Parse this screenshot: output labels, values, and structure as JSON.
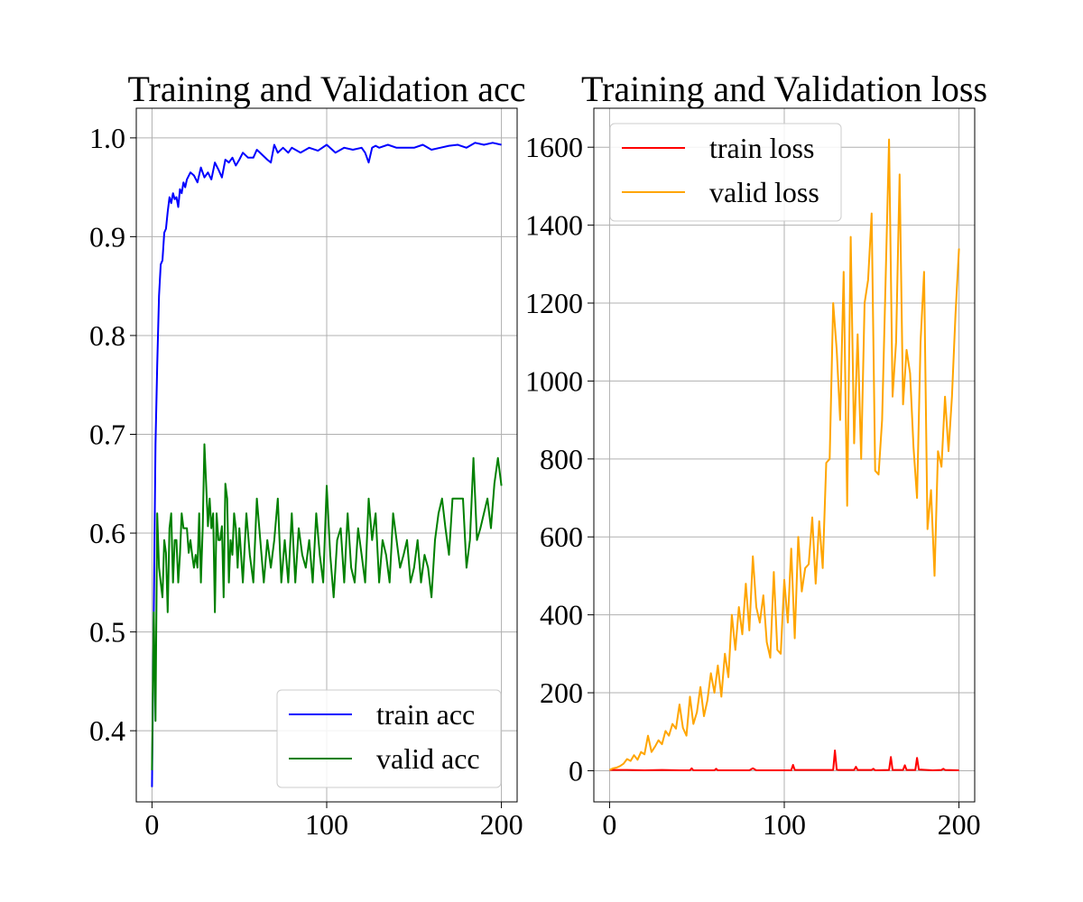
{
  "chart_data": [
    {
      "type": "line",
      "title": "Training and Validation acc",
      "xlabel": "",
      "ylabel": "",
      "xlim": [
        -9,
        209
      ],
      "ylim": [
        0.328,
        1.03
      ],
      "x_ticks": [
        0,
        100,
        200
      ],
      "x_tick_labels": [
        "0",
        "100",
        "200"
      ],
      "y_ticks": [
        0.4,
        0.5,
        0.6,
        0.7,
        0.8,
        0.9,
        1.0
      ],
      "y_tick_labels": [
        "0.4",
        "0.5",
        "0.6",
        "0.7",
        "0.8",
        "0.9",
        "1.0"
      ],
      "grid": true,
      "legend_position": "lower-right",
      "series": [
        {
          "name": "train acc",
          "color": "#0000ff",
          "x": [
            0,
            1,
            2,
            3,
            4,
            5,
            6,
            7,
            8,
            9,
            10,
            11,
            12,
            13,
            14,
            15,
            16,
            17,
            18,
            19,
            20,
            22,
            24,
            26,
            28,
            30,
            32,
            34,
            36,
            38,
            40,
            42,
            44,
            46,
            48,
            50,
            52,
            55,
            58,
            60,
            63,
            66,
            68,
            70,
            72,
            75,
            78,
            80,
            85,
            90,
            95,
            100,
            105,
            110,
            115,
            120,
            122,
            124,
            126,
            128,
            130,
            135,
            140,
            145,
            150,
            155,
            160,
            165,
            170,
            175,
            180,
            185,
            190,
            195,
            200
          ],
          "y": [
            0.343,
            0.52,
            0.69,
            0.77,
            0.84,
            0.872,
            0.876,
            0.904,
            0.908,
            0.925,
            0.94,
            0.934,
            0.944,
            0.938,
            0.94,
            0.93,
            0.948,
            0.944,
            0.955,
            0.95,
            0.958,
            0.965,
            0.962,
            0.955,
            0.97,
            0.96,
            0.965,
            0.958,
            0.975,
            0.968,
            0.96,
            0.978,
            0.975,
            0.98,
            0.972,
            0.978,
            0.985,
            0.98,
            0.98,
            0.988,
            0.983,
            0.978,
            0.975,
            0.993,
            0.985,
            0.99,
            0.985,
            0.99,
            0.985,
            0.99,
            0.987,
            0.993,
            0.985,
            0.99,
            0.988,
            0.99,
            0.985,
            0.975,
            0.99,
            0.992,
            0.99,
            0.993,
            0.99,
            0.99,
            0.99,
            0.993,
            0.988,
            0.99,
            0.992,
            0.993,
            0.99,
            0.995,
            0.993,
            0.995,
            0.993
          ]
        },
        {
          "name": "valid acc",
          "color": "#008000",
          "x": [
            0,
            1,
            2,
            3,
            4,
            5,
            6,
            7,
            8,
            9,
            10,
            11,
            12,
            13,
            14,
            15,
            16,
            17,
            18,
            19,
            20,
            21,
            22,
            23,
            24,
            25,
            26,
            27,
            28,
            29,
            30,
            31,
            32,
            33,
            34,
            35,
            36,
            37,
            38,
            39,
            40,
            41,
            42,
            43,
            44,
            45,
            46,
            47,
            48,
            49,
            50,
            52,
            54,
            56,
            58,
            60,
            62,
            64,
            66,
            68,
            70,
            72,
            74,
            76,
            78,
            80,
            82,
            84,
            86,
            88,
            90,
            92,
            94,
            96,
            98,
            100,
            102,
            104,
            106,
            108,
            110,
            112,
            114,
            116,
            118,
            120,
            122,
            124,
            126,
            128,
            130,
            132,
            134,
            136,
            138,
            140,
            142,
            144,
            146,
            148,
            150,
            152,
            154,
            156,
            158,
            160,
            162,
            164,
            166,
            168,
            170,
            172,
            174,
            176,
            178,
            180,
            182,
            184,
            186,
            188,
            190,
            192,
            194,
            196,
            198,
            200
          ],
          "y": [
            0.36,
            0.52,
            0.41,
            0.62,
            0.565,
            0.55,
            0.535,
            0.593,
            0.58,
            0.52,
            0.605,
            0.62,
            0.55,
            0.593,
            0.593,
            0.55,
            0.578,
            0.62,
            0.605,
            0.605,
            0.605,
            0.58,
            0.593,
            0.578,
            0.565,
            0.578,
            0.565,
            0.62,
            0.55,
            0.605,
            0.69,
            0.65,
            0.607,
            0.635,
            0.605,
            0.62,
            0.52,
            0.62,
            0.593,
            0.593,
            0.607,
            0.535,
            0.65,
            0.635,
            0.55,
            0.593,
            0.578,
            0.62,
            0.605,
            0.565,
            0.605,
            0.55,
            0.62,
            0.578,
            0.55,
            0.635,
            0.593,
            0.55,
            0.593,
            0.565,
            0.593,
            0.635,
            0.55,
            0.593,
            0.55,
            0.62,
            0.55,
            0.605,
            0.578,
            0.565,
            0.593,
            0.55,
            0.62,
            0.578,
            0.55,
            0.648,
            0.578,
            0.535,
            0.593,
            0.605,
            0.55,
            0.62,
            0.565,
            0.55,
            0.605,
            0.578,
            0.55,
            0.635,
            0.593,
            0.62,
            0.55,
            0.593,
            0.578,
            0.55,
            0.62,
            0.593,
            0.565,
            0.578,
            0.593,
            0.55,
            0.565,
            0.593,
            0.55,
            0.578,
            0.565,
            0.535,
            0.593,
            0.62,
            0.635,
            0.605,
            0.578,
            0.635,
            0.635,
            0.635,
            0.635,
            0.565,
            0.593,
            0.676,
            0.593,
            0.605,
            0.62,
            0.635,
            0.605,
            0.65,
            0.676,
            0.648
          ]
        }
      ]
    },
    {
      "type": "line",
      "title": "Training and Validation loss",
      "xlabel": "",
      "ylabel": "",
      "xlim": [
        -9,
        209
      ],
      "ylim": [
        -80,
        1700
      ],
      "x_ticks": [
        0,
        100,
        200
      ],
      "x_tick_labels": [
        "0",
        "100",
        "200"
      ],
      "y_ticks": [
        0,
        200,
        400,
        600,
        800,
        1000,
        1200,
        1400,
        1600
      ],
      "y_tick_labels": [
        "0",
        "200",
        "400",
        "600",
        "800",
        "1000",
        "1200",
        "1400",
        "1600"
      ],
      "grid": true,
      "legend_position": "upper-left",
      "series": [
        {
          "name": "train loss",
          "color": "#ff0000",
          "x": [
            0,
            10,
            20,
            30,
            40,
            46,
            47,
            48,
            60,
            61,
            62,
            80,
            82,
            84,
            100,
            104,
            105,
            106,
            120,
            126,
            128,
            129,
            130,
            131,
            140,
            141,
            142,
            150,
            151,
            152,
            160,
            161,
            162,
            168,
            169,
            170,
            175,
            176,
            177,
            185,
            190,
            191,
            192,
            200
          ],
          "y": [
            2,
            2,
            1,
            2,
            1,
            1,
            6,
            1,
            1,
            5,
            1,
            1,
            6,
            1,
            1,
            1,
            15,
            2,
            2,
            2,
            2,
            52,
            3,
            2,
            2,
            10,
            2,
            2,
            5,
            1,
            2,
            35,
            2,
            2,
            14,
            2,
            2,
            33,
            3,
            1,
            2,
            5,
            2,
            1
          ]
        },
        {
          "name": "valid loss",
          "color": "#ffa500",
          "x": [
            0,
            2,
            4,
            6,
            8,
            10,
            12,
            14,
            16,
            18,
            20,
            22,
            24,
            26,
            28,
            30,
            32,
            34,
            36,
            38,
            40,
            42,
            44,
            46,
            48,
            50,
            52,
            54,
            56,
            58,
            60,
            62,
            64,
            66,
            68,
            70,
            72,
            74,
            76,
            78,
            80,
            82,
            84,
            86,
            88,
            90,
            92,
            94,
            96,
            98,
            100,
            102,
            104,
            106,
            108,
            110,
            112,
            114,
            116,
            118,
            120,
            122,
            124,
            126,
            128,
            130,
            132,
            134,
            136,
            138,
            140,
            142,
            144,
            146,
            148,
            150,
            152,
            154,
            156,
            158,
            160,
            162,
            164,
            166,
            168,
            170,
            172,
            174,
            176,
            178,
            180,
            182,
            184,
            186,
            188,
            190,
            192,
            194,
            196,
            198,
            200
          ],
          "y": [
            2,
            6,
            8,
            12,
            18,
            30,
            25,
            40,
            28,
            48,
            42,
            90,
            48,
            62,
            78,
            68,
            102,
            90,
            120,
            108,
            170,
            110,
            90,
            190,
            120,
            150,
            215,
            140,
            180,
            250,
            200,
            270,
            190,
            300,
            240,
            400,
            310,
            420,
            350,
            480,
            360,
            550,
            420,
            380,
            450,
            330,
            290,
            510,
            310,
            300,
            490,
            380,
            570,
            340,
            600,
            460,
            520,
            530,
            650,
            480,
            640,
            520,
            790,
            800,
            1200,
            1080,
            900,
            1280,
            680,
            1370,
            840,
            1120,
            800,
            1200,
            1260,
            1430,
            770,
            760,
            900,
            1260,
            1620,
            960,
            1100,
            1530,
            940,
            1080,
            1020,
            830,
            700,
            1100,
            1280,
            620,
            720,
            500,
            820,
            780,
            960,
            820,
            960,
            1170,
            1340
          ]
        }
      ]
    }
  ]
}
